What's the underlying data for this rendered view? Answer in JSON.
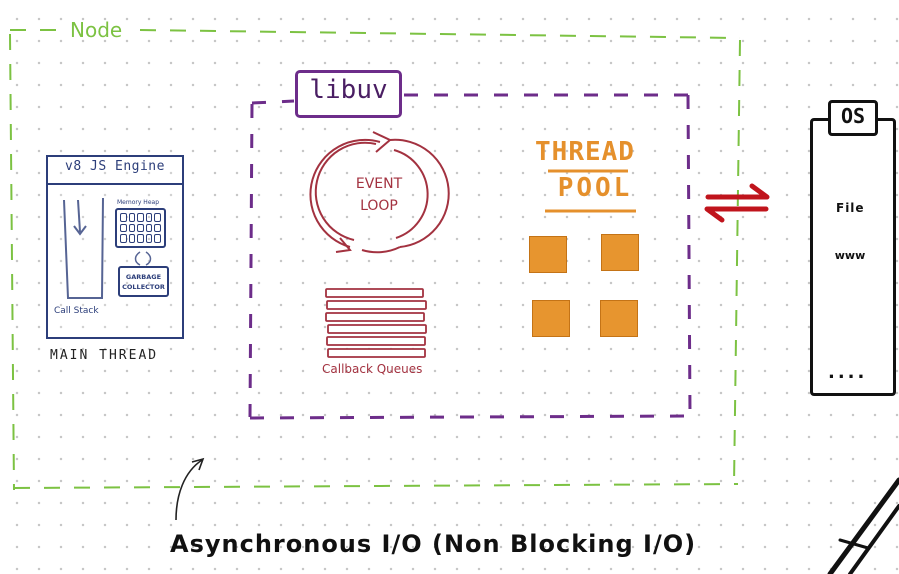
{
  "diagram": {
    "node_label": "Node",
    "v8": {
      "title": "v8 JS Engine",
      "memory_heap": "Memory Heap",
      "garbage_collector": "GARBAGE COLLECTOR",
      "call_stack": "Call Stack",
      "main_thread": "MAIN THREAD"
    },
    "libuv": {
      "title": "libuv",
      "event_loop": "EVENT LOOP",
      "callback_queues": "Callback Queues",
      "thread_pool_line1": "THREAD",
      "thread_pool_line2": "POOL"
    },
    "os": {
      "title": "OS",
      "file": "File",
      "www": "www",
      "more": "...."
    },
    "caption": "Asynchronous I/O (Non Blocking I/O)"
  },
  "colors": {
    "node_green": "#7cc242",
    "libuv_purple": "#6d2d8a",
    "event_red": "#a33240",
    "pool_orange": "#e5902c",
    "v8_blue": "#2c3e7a",
    "arrow_red": "#c0141c"
  },
  "icons": [
    "cycle-arrows-icon",
    "document-icon",
    "globe-icon",
    "stopwatch-icon",
    "swap-arrows-icon",
    "curved-pointer-arrow-icon"
  ]
}
